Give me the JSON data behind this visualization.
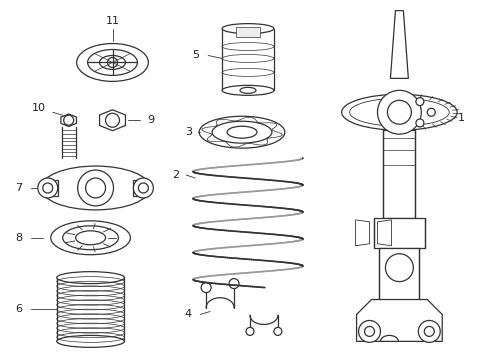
{
  "background_color": "#ffffff",
  "line_color": "#333333",
  "text_color": "#222222",
  "fig_width": 4.89,
  "fig_height": 3.6,
  "dpi": 100
}
